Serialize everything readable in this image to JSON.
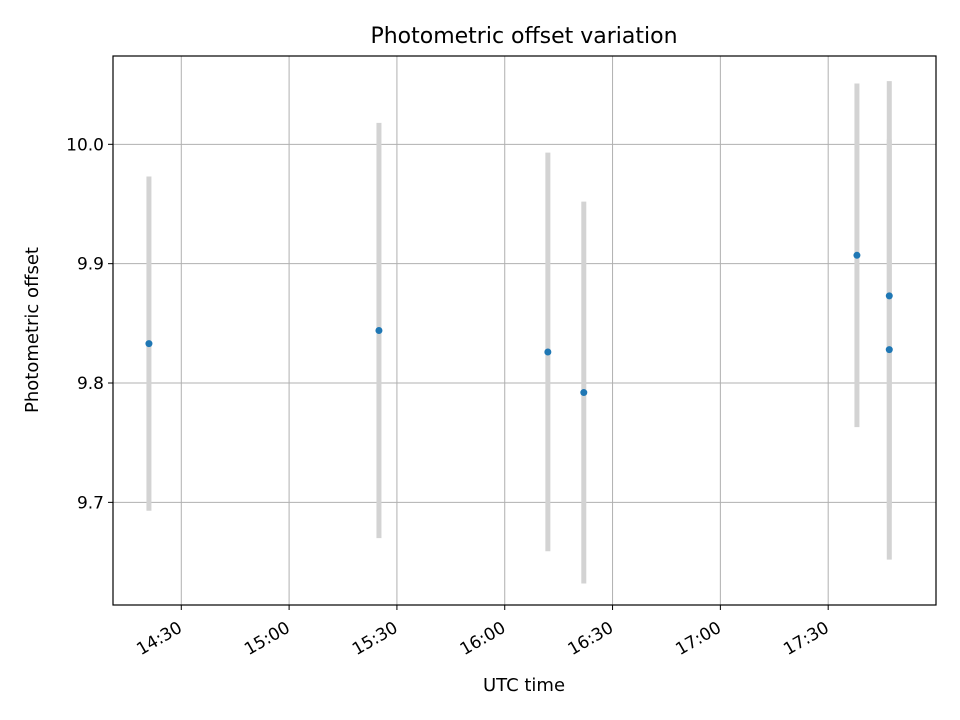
{
  "chart_data": {
    "type": "scatter",
    "title": "Photometric offset variation",
    "xlabel": "UTC time",
    "ylabel": "Photometric offset",
    "xlim": [
      "14:11",
      "18:00"
    ],
    "ylim": [
      9.614,
      10.074
    ],
    "x_ticks": [
      "14:30",
      "15:00",
      "15:30",
      "16:00",
      "16:30",
      "17:00",
      "17:30"
    ],
    "y_ticks": [
      9.7,
      9.8,
      9.9,
      10.0
    ],
    "grid": true,
    "colors": {
      "point": "#1f77b4",
      "errorbar": "#d3d3d3",
      "grid": "#b0b0b0"
    },
    "points": [
      {
        "x": "14:21",
        "y": 9.833,
        "low": 9.693,
        "high": 9.973
      },
      {
        "x": "15:25",
        "y": 9.844,
        "low": 9.67,
        "high": 10.018
      },
      {
        "x": "16:12",
        "y": 9.826,
        "low": 9.659,
        "high": 9.993
      },
      {
        "x": "16:22",
        "y": 9.792,
        "low": 9.632,
        "high": 9.952
      },
      {
        "x": "17:38",
        "y": 9.907,
        "low": 9.763,
        "high": 10.051
      },
      {
        "x": "17:47",
        "y": 9.873,
        "low": 9.695,
        "high": 10.004
      },
      {
        "x": "17:47",
        "y": 9.828,
        "low": 9.652,
        "high": 10.053
      }
    ]
  }
}
